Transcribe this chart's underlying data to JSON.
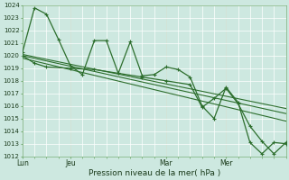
{
  "xlabel": "Pression niveau de la mer( hPa )",
  "bg_color": "#cde8e0",
  "line_color": "#2d6e2d",
  "ylim": [
    1012,
    1024
  ],
  "yticks": [
    1012,
    1013,
    1014,
    1015,
    1016,
    1017,
    1018,
    1019,
    1020,
    1021,
    1022,
    1023,
    1024
  ],
  "xtick_positions": [
    0,
    16,
    48,
    68
  ],
  "xtick_labels": [
    "Lun",
    "Jeu",
    "Mar",
    "Mer"
  ],
  "xlim": [
    0,
    88
  ],
  "trend1_x": [
    0,
    88
  ],
  "trend1_y": [
    1020.1,
    1015.8
  ],
  "trend2_x": [
    0,
    88
  ],
  "trend2_y": [
    1020.0,
    1015.4
  ],
  "trend3_x": [
    0,
    88
  ],
  "trend3_y": [
    1019.8,
    1014.8
  ],
  "obs1_x": [
    0,
    4,
    8,
    12,
    16,
    20,
    24,
    28,
    32,
    36,
    40,
    44,
    48,
    52,
    56,
    60,
    64,
    68,
    72,
    76,
    80,
    84,
    88
  ],
  "obs1_y": [
    1020.3,
    1023.8,
    1023.3,
    1021.3,
    1019.2,
    1018.5,
    1021.2,
    1021.2,
    1018.6,
    1021.1,
    1018.4,
    1018.5,
    1019.1,
    1018.9,
    1018.3,
    1016.0,
    1015.0,
    1017.5,
    1016.3,
    1013.1,
    1012.2,
    1013.1,
    1013.0
  ],
  "obs2_x": [
    0,
    4,
    8,
    16,
    24,
    32,
    40,
    48,
    56,
    60,
    64,
    68,
    72,
    76,
    80,
    84,
    88
  ],
  "obs2_y": [
    1020.0,
    1019.4,
    1019.1,
    1019.0,
    1018.9,
    1018.6,
    1018.3,
    1018.0,
    1017.7,
    1015.9,
    1016.6,
    1017.4,
    1016.2,
    1014.4,
    1013.2,
    1012.2,
    1013.1
  ]
}
